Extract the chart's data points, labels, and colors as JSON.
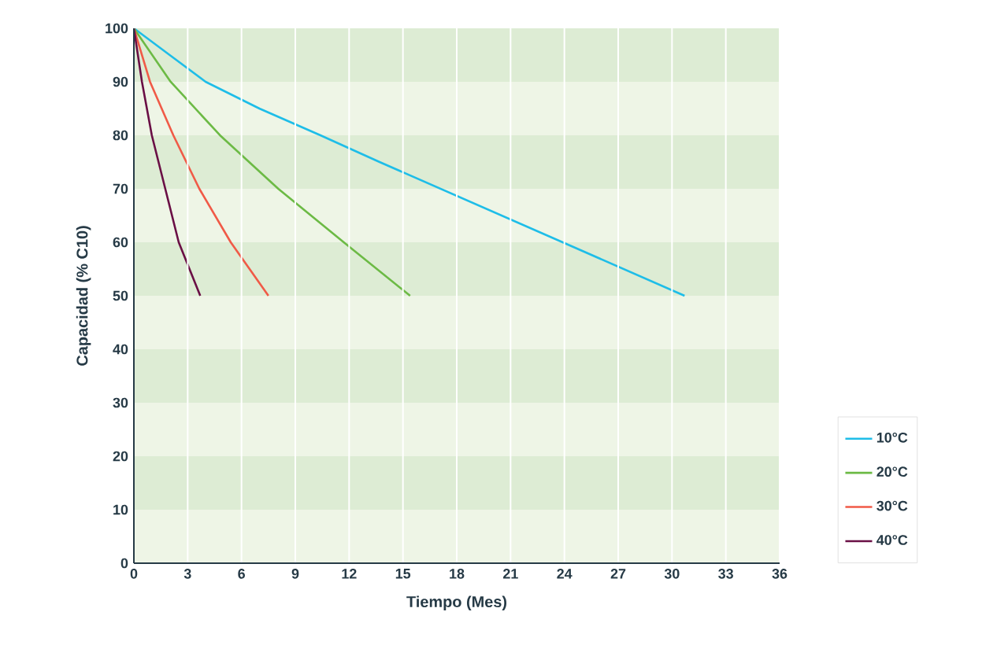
{
  "chart_data": {
    "type": "line",
    "xlabel": "Tiempo (Mes)",
    "ylabel": "Capacidad (% C10)",
    "xlim": [
      0,
      36
    ],
    "xticks": [
      0,
      3,
      6,
      9,
      12,
      15,
      18,
      21,
      24,
      27,
      30,
      33,
      36
    ],
    "ylim": [
      0,
      100
    ],
    "yticks": [
      0,
      10,
      20,
      30,
      40,
      50,
      60,
      70,
      80,
      90,
      100
    ],
    "grid": "x",
    "legend": "right",
    "marker": "none",
    "line_style": "solid",
    "bands": [
      {
        "axis": "y",
        "from": 0,
        "to": 10,
        "color": "#eef5e6"
      },
      {
        "axis": "y",
        "from": 10,
        "to": 20,
        "color": "#ddecd4"
      },
      {
        "axis": "y",
        "from": 20,
        "to": 30,
        "color": "#eef5e6"
      },
      {
        "axis": "y",
        "from": 30,
        "to": 40,
        "color": "#ddecd4"
      },
      {
        "axis": "y",
        "from": 40,
        "to": 50,
        "color": "#eef5e6"
      },
      {
        "axis": "y",
        "from": 50,
        "to": 60,
        "color": "#ddecd4"
      },
      {
        "axis": "y",
        "from": 60,
        "to": 70,
        "color": "#eef5e6"
      },
      {
        "axis": "y",
        "from": 70,
        "to": 80,
        "color": "#ddecd4"
      },
      {
        "axis": "y",
        "from": 80,
        "to": 90,
        "color": "#eef5e6"
      },
      {
        "axis": "y",
        "from": 90,
        "to": 100,
        "color": "#ddecd4"
      }
    ],
    "series": [
      {
        "name": "10°C",
        "color": "#1ebde8",
        "x": [
          0,
          2,
          4,
          7,
          10.4,
          13.7,
          17.1,
          20.5,
          23.9,
          27.3,
          30.7
        ],
        "values": [
          100,
          95,
          90,
          85,
          80,
          75,
          70,
          65,
          60,
          55,
          50
        ]
      },
      {
        "name": "20°C",
        "color": "#6cba45",
        "x": [
          0,
          2.05,
          4.8,
          8.05,
          11.7,
          15.4
        ],
        "values": [
          100,
          90,
          80,
          70,
          60,
          50
        ]
      },
      {
        "name": "30°C",
        "color": "#f05a47",
        "x": [
          0,
          0.9,
          2.2,
          3.65,
          5.4,
          7.5
        ],
        "values": [
          100,
          90,
          80,
          70,
          60,
          50
        ]
      },
      {
        "name": "40°C",
        "color": "#6a0f45",
        "x": [
          0,
          0.45,
          1.0,
          1.75,
          2.5,
          3.7
        ],
        "values": [
          100,
          90,
          80,
          70,
          60,
          50
        ]
      }
    ]
  }
}
